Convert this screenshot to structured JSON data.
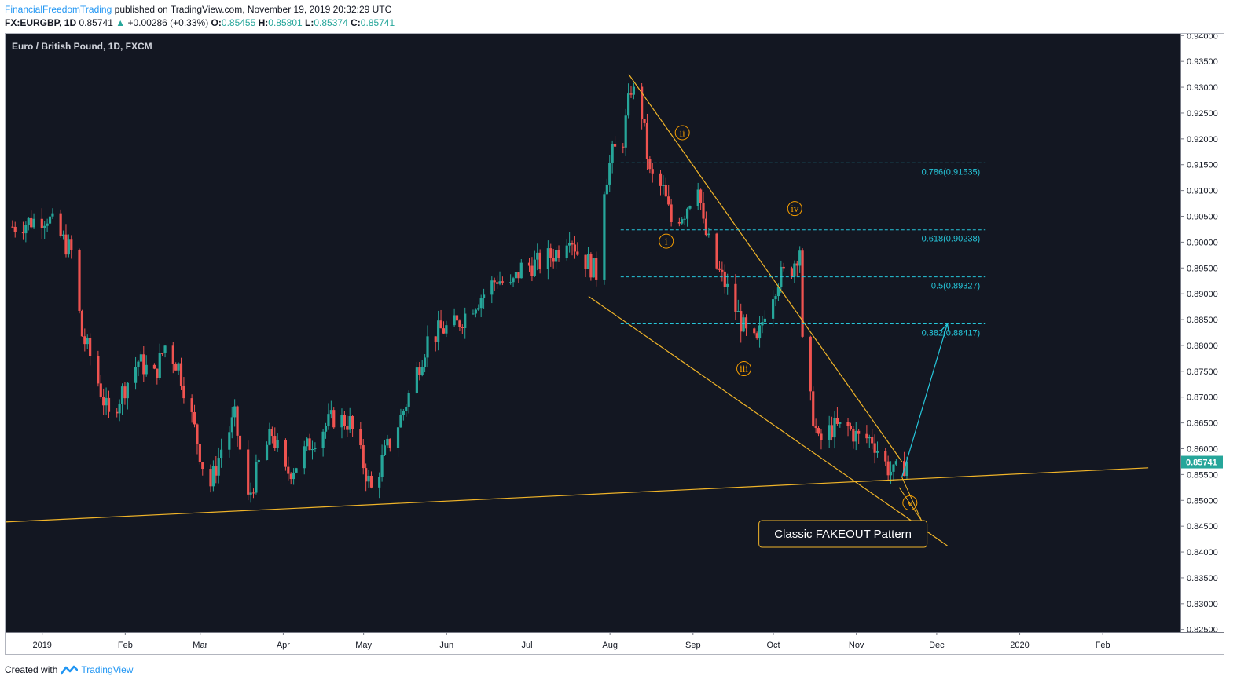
{
  "header": {
    "author": "FinancialFreedomTrading",
    "published_text": "published on TradingView.com, November 19, 2019 20:32:29 UTC",
    "symbol": "FX:EURGBP, 1D",
    "last": "0.85741",
    "change": "+0.00286 (+0.33%)",
    "open_label": "O:",
    "open": "0.85455",
    "high_label": "H:",
    "high": "0.85801",
    "low_label": "L:",
    "low": "0.85374",
    "close_label": "C:",
    "close": "0.85741"
  },
  "chart_title": "Euro / British Pound, 1D, FXCM",
  "footer": {
    "created_with": "Created with",
    "brand": "TradingView"
  },
  "colors": {
    "background": "#131722",
    "up": "#26a69a",
    "down": "#ef5350",
    "trendline": "#f0b429",
    "fib": "#26c6da",
    "arrow": "#26c6da",
    "label": "#f59d00",
    "price_tag": "#26a69a"
  },
  "chart_data": {
    "type": "candlestick",
    "symbol": "EURGBP",
    "timeframe": "1D",
    "x_range": [
      "2018-12-18",
      "2020-03-01"
    ],
    "ylim": [
      0.8245,
      0.9405
    ],
    "y_ticks": [
      "0.94000",
      "0.93500",
      "0.93000",
      "0.92500",
      "0.92000",
      "0.91500",
      "0.91000",
      "0.90500",
      "0.90000",
      "0.89500",
      "0.89000",
      "0.88500",
      "0.88000",
      "0.87500",
      "0.87000",
      "0.86500",
      "0.86000",
      "0.85500",
      "0.85000",
      "0.84500",
      "0.84000",
      "0.83500",
      "0.83000",
      "0.82500"
    ],
    "x_ticks": [
      {
        "label": "2019",
        "date": "2019-01-01"
      },
      {
        "label": "Feb",
        "date": "2019-02-01"
      },
      {
        "label": "Mar",
        "date": "2019-03-01"
      },
      {
        "label": "Apr",
        "date": "2019-04-01"
      },
      {
        "label": "May",
        "date": "2019-05-01"
      },
      {
        "label": "Jun",
        "date": "2019-06-01"
      },
      {
        "label": "Jul",
        "date": "2019-07-01"
      },
      {
        "label": "Aug",
        "date": "2019-08-01"
      },
      {
        "label": "Sep",
        "date": "2019-09-01"
      },
      {
        "label": "Oct",
        "date": "2019-10-01"
      },
      {
        "label": "Nov",
        "date": "2019-11-01"
      },
      {
        "label": "Dec",
        "date": "2019-12-01"
      },
      {
        "label": "2020",
        "date": "2020-01-01"
      },
      {
        "label": "Feb",
        "date": "2020-02-01"
      }
    ],
    "close_path": [
      {
        "date": "2018-12-20",
        "close": 0.903
      },
      {
        "date": "2019-01-02",
        "close": 0.905
      },
      {
        "date": "2019-01-07",
        "close": 0.901
      },
      {
        "date": "2019-01-11",
        "close": 0.898
      },
      {
        "date": "2019-01-15",
        "close": 0.882
      },
      {
        "date": "2019-01-18",
        "close": 0.878
      },
      {
        "date": "2019-01-25",
        "close": 0.866
      },
      {
        "date": "2019-01-31",
        "close": 0.872
      },
      {
        "date": "2019-02-05",
        "close": 0.877
      },
      {
        "date": "2019-02-11",
        "close": 0.874
      },
      {
        "date": "2019-02-15",
        "close": 0.88
      },
      {
        "date": "2019-02-20",
        "close": 0.876
      },
      {
        "date": "2019-02-25",
        "close": 0.866
      },
      {
        "date": "2019-03-01",
        "close": 0.857
      },
      {
        "date": "2019-03-04",
        "close": 0.853
      },
      {
        "date": "2019-03-08",
        "close": 0.86
      },
      {
        "date": "2019-03-13",
        "close": 0.866
      },
      {
        "date": "2019-03-18",
        "close": 0.85
      },
      {
        "date": "2019-03-22",
        "close": 0.857
      },
      {
        "date": "2019-03-27",
        "close": 0.863
      },
      {
        "date": "2019-04-01",
        "close": 0.855
      },
      {
        "date": "2019-04-05",
        "close": 0.857
      },
      {
        "date": "2019-04-10",
        "close": 0.861
      },
      {
        "date": "2019-04-15",
        "close": 0.864
      },
      {
        "date": "2019-04-19",
        "close": 0.866
      },
      {
        "date": "2019-04-25",
        "close": 0.865
      },
      {
        "date": "2019-04-30",
        "close": 0.857
      },
      {
        "date": "2019-05-03",
        "close": 0.852
      },
      {
        "date": "2019-05-08",
        "close": 0.859
      },
      {
        "date": "2019-05-14",
        "close": 0.866
      },
      {
        "date": "2019-05-20",
        "close": 0.875
      },
      {
        "date": "2019-05-24",
        "close": 0.881
      },
      {
        "date": "2019-05-29",
        "close": 0.883
      },
      {
        "date": "2019-06-04",
        "close": 0.884
      },
      {
        "date": "2019-06-10",
        "close": 0.888
      },
      {
        "date": "2019-06-14",
        "close": 0.89
      },
      {
        "date": "2019-06-19",
        "close": 0.893
      },
      {
        "date": "2019-06-24",
        "close": 0.891
      },
      {
        "date": "2019-06-28",
        "close": 0.895
      },
      {
        "date": "2019-07-05",
        "close": 0.896
      },
      {
        "date": "2019-07-11",
        "close": 0.898
      },
      {
        "date": "2019-07-16",
        "close": 0.902
      },
      {
        "date": "2019-07-19",
        "close": 0.898
      },
      {
        "date": "2019-07-23",
        "close": 0.896
      },
      {
        "date": "2019-07-26",
        "close": 0.894
      },
      {
        "date": "2019-07-29",
        "close": 0.911
      },
      {
        "date": "2019-08-01",
        "close": 0.917
      },
      {
        "date": "2019-08-05",
        "close": 0.92
      },
      {
        "date": "2019-08-08",
        "close": 0.93
      },
      {
        "date": "2019-08-12",
        "close": 0.925
      },
      {
        "date": "2019-08-15",
        "close": 0.913
      },
      {
        "date": "2019-08-20",
        "close": 0.91
      },
      {
        "date": "2019-08-23",
        "close": 0.904
      },
      {
        "date": "2019-08-28",
        "close": 0.906
      },
      {
        "date": "2019-09-02",
        "close": 0.912
      },
      {
        "date": "2019-09-04",
        "close": 0.903
      },
      {
        "date": "2019-09-09",
        "close": 0.895
      },
      {
        "date": "2019-09-12",
        "close": 0.892
      },
      {
        "date": "2019-09-16",
        "close": 0.887
      },
      {
        "date": "2019-09-20",
        "close": 0.882
      },
      {
        "date": "2019-09-24",
        "close": 0.88
      },
      {
        "date": "2019-09-27",
        "close": 0.887
      },
      {
        "date": "2019-10-02",
        "close": 0.893
      },
      {
        "date": "2019-10-07",
        "close": 0.895
      },
      {
        "date": "2019-10-10",
        "close": 0.899
      },
      {
        "date": "2019-10-11",
        "close": 0.88
      },
      {
        "date": "2019-10-14",
        "close": 0.869
      },
      {
        "date": "2019-10-17",
        "close": 0.861
      },
      {
        "date": "2019-10-22",
        "close": 0.864
      },
      {
        "date": "2019-10-28",
        "close": 0.864
      },
      {
        "date": "2019-11-01",
        "close": 0.862
      },
      {
        "date": "2019-11-06",
        "close": 0.862
      },
      {
        "date": "2019-11-11",
        "close": 0.857
      },
      {
        "date": "2019-11-14",
        "close": 0.855
      },
      {
        "date": "2019-11-19",
        "close": 0.85741
      }
    ],
    "trendlines": [
      {
        "name": "channel-top",
        "from": {
          "date": "2019-08-08",
          "price": 0.9325
        },
        "to": {
          "date": "2019-11-18",
          "price": 0.8575
        }
      },
      {
        "name": "channel-bottom",
        "from": {
          "date": "2019-07-24",
          "price": 0.8895
        },
        "to": {
          "date": "2019-12-05",
          "price": 0.8412
        }
      },
      {
        "name": "support",
        "from": {
          "date": "2018-12-18",
          "price": 0.8458
        },
        "to": {
          "date": "2020-02-18",
          "price": 0.8563
        }
      }
    ],
    "fib_levels": [
      {
        "ratio": "0.786",
        "price": 0.91535,
        "label": "0.786(0.91535)"
      },
      {
        "ratio": "0.618",
        "price": 0.90238,
        "label": "0.618(0.90238)"
      },
      {
        "ratio": "0.5",
        "price": 0.89327,
        "label": "0.5(0.89327)"
      },
      {
        "ratio": "0.382",
        "price": 0.88417,
        "label": "0.382(0.88417)"
      }
    ],
    "fib_start_date": "2019-08-05",
    "fib_end_date": "2019-12-19",
    "wave_labels": [
      {
        "label": "i",
        "date": "2019-08-22",
        "price": 0.9002
      },
      {
        "label": "ii",
        "date": "2019-08-28",
        "price": 0.9212
      },
      {
        "label": "iii",
        "date": "2019-09-20",
        "price": 0.8755
      },
      {
        "label": "iv",
        "date": "2019-10-09",
        "price": 0.9065
      },
      {
        "label": "v",
        "date": "2019-11-21",
        "price": 0.8495
      }
    ],
    "projection_arrow": {
      "from": {
        "date": "2019-11-18",
        "price": 0.8545
      },
      "to": {
        "date": "2019-12-05",
        "price": 0.8842
      }
    },
    "callout": {
      "text": "Classic FAKEOUT Pattern",
      "anchor": {
        "date": "2019-10-27",
        "price": 0.8435
      },
      "pointers": [
        {
          "date": "2019-11-17",
          "price": 0.8525
        },
        {
          "date": "2019-11-18",
          "price": 0.8545
        }
      ]
    },
    "last_price": 0.85741,
    "last_price_label": "0.85741"
  }
}
